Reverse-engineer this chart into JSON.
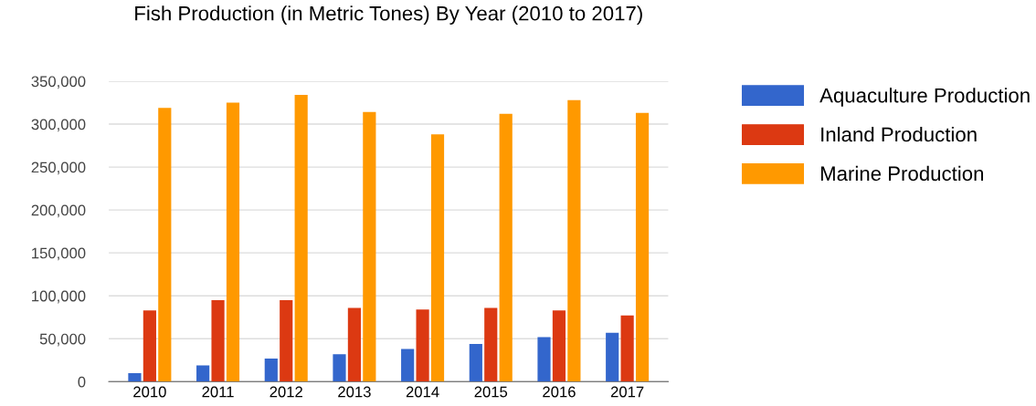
{
  "chart_data": {
    "type": "bar",
    "title": "Fish Production (in Metric Tones) By Year (2010 to 2017)",
    "categories": [
      "2010",
      "2011",
      "2012",
      "2013",
      "2014",
      "2015",
      "2016",
      "2017"
    ],
    "series": [
      {
        "name": "Aquaculture Production",
        "color": "#3366cc",
        "values": [
          10000,
          19000,
          27000,
          32000,
          38000,
          44000,
          52000,
          57000
        ]
      },
      {
        "name": "Inland Production",
        "color": "#dc3912",
        "values": [
          83000,
          95000,
          95000,
          86000,
          84000,
          86000,
          83000,
          77000
        ]
      },
      {
        "name": "Marine Production",
        "color": "#ff9900",
        "values": [
          319000,
          325000,
          334000,
          314000,
          288000,
          312000,
          328000,
          313000
        ]
      }
    ],
    "ylim": [
      0,
      350000
    ],
    "yticks": [
      {
        "value": 0,
        "label": "0"
      },
      {
        "value": 50000,
        "label": "50,000"
      },
      {
        "value": 100000,
        "label": "100,000"
      },
      {
        "value": 150000,
        "label": "150,000"
      },
      {
        "value": 200000,
        "label": "200,000"
      },
      {
        "value": 250000,
        "label": "250,000"
      },
      {
        "value": 300000,
        "label": "300,000"
      },
      {
        "value": 350000,
        "label": "350,000"
      }
    ],
    "grid": "y",
    "legend": "right"
  }
}
